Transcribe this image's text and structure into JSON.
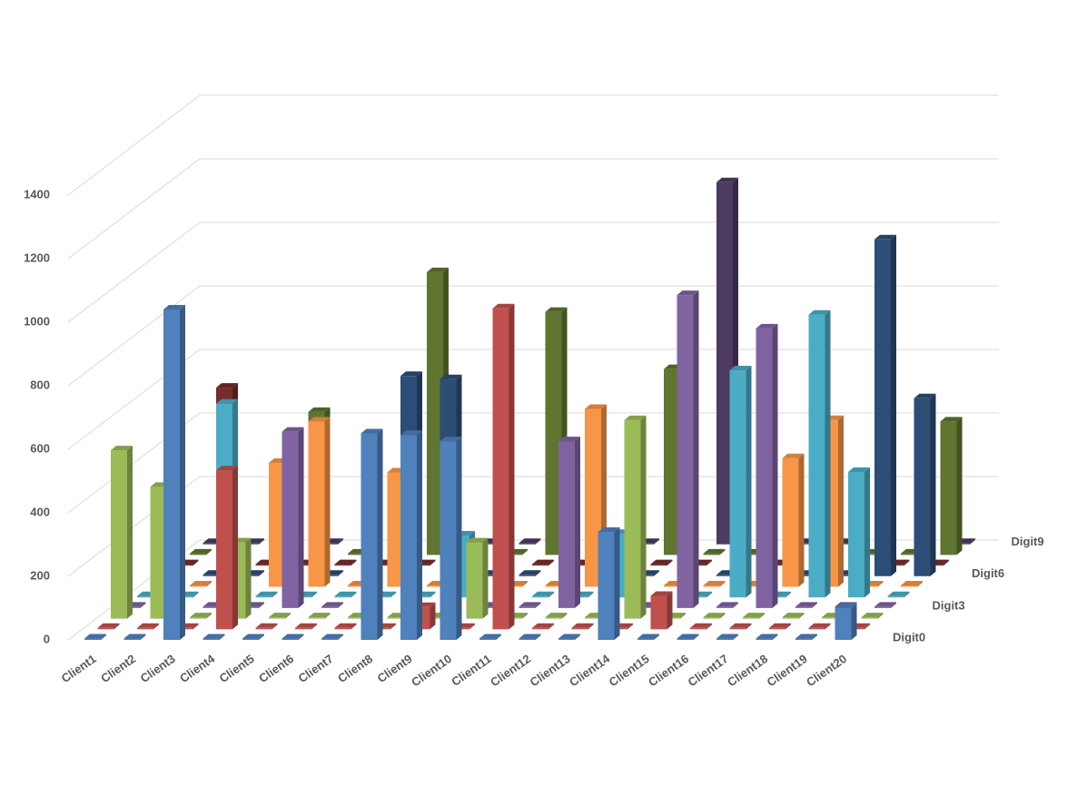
{
  "chart_data": {
    "type": "bar3d",
    "categories": [
      "Client1",
      "Client2",
      "Client3",
      "Client4",
      "Client5",
      "Client6",
      "Client7",
      "Client8",
      "Client9",
      "Client10",
      "Client11",
      "Client12",
      "Client13",
      "Client14",
      "Client15",
      "Client16",
      "Client17",
      "Client18",
      "Client19",
      "Client20"
    ],
    "ylim": [
      0,
      1400
    ],
    "yticks": [
      0,
      200,
      400,
      600,
      800,
      1000,
      1200,
      1400
    ],
    "grid": true,
    "series": [
      {
        "name": "Digit0",
        "color": "#4F81BD",
        "values": [
          0,
          0,
          1040,
          0,
          0,
          0,
          0,
          650,
          645,
          625,
          0,
          0,
          0,
          340,
          0,
          0,
          0,
          0,
          0,
          100
        ]
      },
      {
        "name": null,
        "color": "#C0504D",
        "values": [
          0,
          0,
          0,
          500,
          0,
          0,
          0,
          0,
          70,
          0,
          1010,
          0,
          0,
          0,
          105,
          0,
          0,
          0,
          0,
          0
        ]
      },
      {
        "name": null,
        "color": "#9BBB59",
        "values": [
          530,
          415,
          0,
          240,
          0,
          0,
          0,
          0,
          0,
          240,
          0,
          0,
          0,
          625,
          0,
          0,
          0,
          0,
          0,
          0
        ]
      },
      {
        "name": "Digit3",
        "color": "#8064A2",
        "values": [
          0,
          0,
          0,
          0,
          555,
          0,
          0,
          0,
          0,
          0,
          0,
          525,
          0,
          0,
          985,
          0,
          880,
          0,
          0,
          0
        ]
      },
      {
        "name": null,
        "color": "#4BACC6",
        "values": [
          0,
          0,
          610,
          0,
          0,
          0,
          0,
          0,
          195,
          0,
          0,
          0,
          200,
          0,
          0,
          715,
          0,
          890,
          395,
          0
        ]
      },
      {
        "name": null,
        "color": "#F79646",
        "values": [
          0,
          0,
          0,
          390,
          520,
          0,
          360,
          0,
          0,
          0,
          0,
          560,
          120,
          0,
          0,
          0,
          405,
          525,
          0,
          0
        ]
      },
      {
        "name": "Digit6",
        "color": "#2C4D75",
        "values": [
          0,
          0,
          0,
          0,
          0,
          0,
          630,
          620,
          0,
          0,
          415,
          0,
          0,
          0,
          0,
          0,
          0,
          0,
          1060,
          560
        ]
      },
      {
        "name": null,
        "color": "#772C2A",
        "values": [
          0,
          560,
          0,
          0,
          0,
          0,
          0,
          0,
          360,
          0,
          0,
          0,
          0,
          0,
          460,
          0,
          500,
          0,
          0,
          0
        ]
      },
      {
        "name": null,
        "color": "#5F7530",
        "values": [
          0,
          0,
          0,
          450,
          0,
          235,
          890,
          0,
          0,
          765,
          0,
          0,
          585,
          0,
          0,
          0,
          0,
          0,
          0,
          420
        ]
      },
      {
        "name": "Digit9",
        "color": "#4D3B62",
        "values": [
          0,
          0,
          0,
          0,
          0,
          0,
          0,
          0,
          0,
          0,
          0,
          0,
          0,
          1140,
          0,
          0,
          0,
          0,
          0,
          0
        ]
      }
    ]
  }
}
